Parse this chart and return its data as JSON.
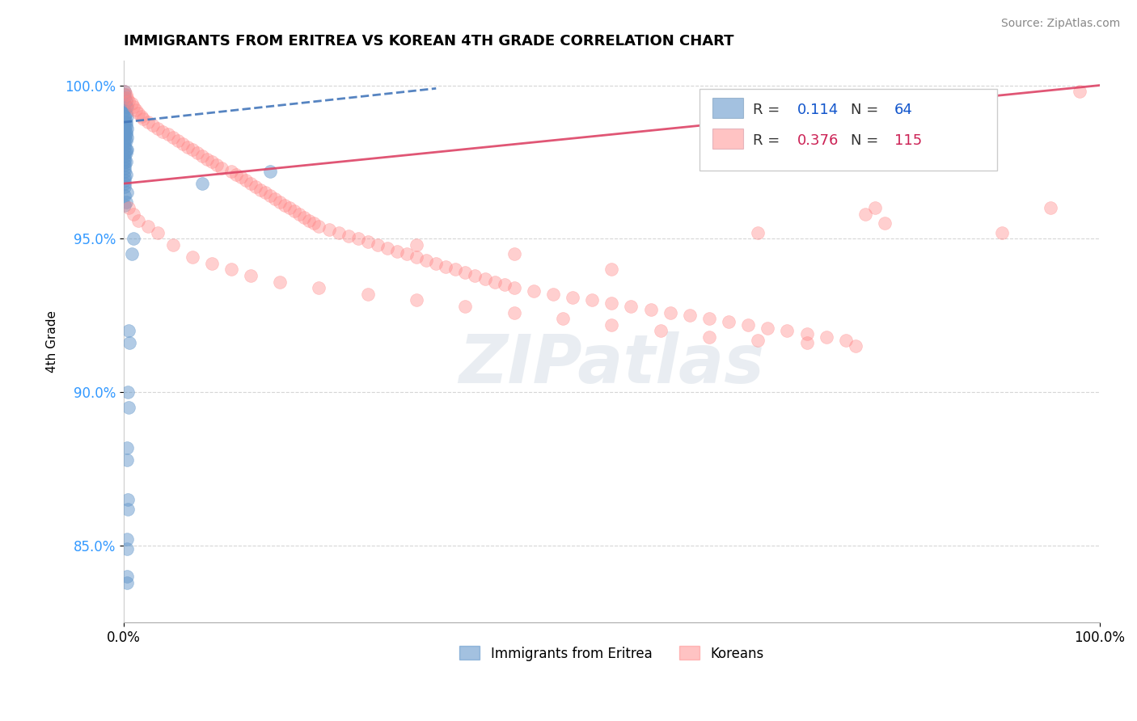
{
  "title": "IMMIGRANTS FROM ERITREA VS KOREAN 4TH GRADE CORRELATION CHART",
  "source_text": "Source: ZipAtlas.com",
  "ylabel": "4th Grade",
  "xlim": [
    0.0,
    1.0
  ],
  "ylim": [
    0.825,
    1.008
  ],
  "yticks": [
    0.85,
    0.9,
    0.95,
    1.0
  ],
  "ytick_labels": [
    "85.0%",
    "90.0%",
    "95.0%",
    "100.0%"
  ],
  "xticks": [
    0.0,
    1.0
  ],
  "xtick_labels": [
    "0.0%",
    "100.0%"
  ],
  "blue_color": "#6699CC",
  "pink_color": "#FF8888",
  "blue_R": 0.114,
  "blue_N": 64,
  "pink_R": 0.376,
  "pink_N": 115,
  "legend_label_blue": "Immigrants from Eritrea",
  "legend_label_pink": "Koreans",
  "watermark": "ZIPatlas",
  "blue_scatter_x": [
    0.001,
    0.001,
    0.001,
    0.002,
    0.001,
    0.003,
    0.002,
    0.001,
    0.002,
    0.001,
    0.003,
    0.001,
    0.001,
    0.002,
    0.001,
    0.002,
    0.001,
    0.003,
    0.001,
    0.002,
    0.001,
    0.002,
    0.001,
    0.003,
    0.001,
    0.002,
    0.001,
    0.001,
    0.002,
    0.003,
    0.001,
    0.002,
    0.001,
    0.001,
    0.002,
    0.001,
    0.001,
    0.001,
    0.001,
    0.002,
    0.001,
    0.001,
    0.001,
    0.001,
    0.003,
    0.001,
    0.002,
    0.001,
    0.15,
    0.08,
    0.01,
    0.008,
    0.005,
    0.006,
    0.004,
    0.005,
    0.003,
    0.003,
    0.004,
    0.004,
    0.003,
    0.003,
    0.003,
    0.003
  ],
  "blue_scatter_y": [
    0.998,
    0.997,
    0.996,
    0.995,
    0.994,
    0.993,
    0.993,
    0.992,
    0.991,
    0.99,
    0.99,
    0.989,
    0.988,
    0.988,
    0.987,
    0.987,
    0.986,
    0.986,
    0.985,
    0.985,
    0.984,
    0.984,
    0.983,
    0.983,
    0.982,
    0.982,
    0.981,
    0.98,
    0.979,
    0.979,
    0.978,
    0.978,
    0.977,
    0.976,
    0.975,
    0.975,
    0.974,
    0.973,
    0.972,
    0.971,
    0.97,
    0.969,
    0.968,
    0.967,
    0.965,
    0.964,
    0.962,
    0.961,
    0.972,
    0.968,
    0.95,
    0.945,
    0.92,
    0.916,
    0.9,
    0.895,
    0.882,
    0.878,
    0.865,
    0.862,
    0.852,
    0.849,
    0.84,
    0.838
  ],
  "pink_scatter_x": [
    0.001,
    0.002,
    0.003,
    0.005,
    0.008,
    0.01,
    0.012,
    0.015,
    0.018,
    0.02,
    0.025,
    0.03,
    0.035,
    0.04,
    0.045,
    0.05,
    0.055,
    0.06,
    0.065,
    0.07,
    0.075,
    0.08,
    0.085,
    0.09,
    0.095,
    0.1,
    0.11,
    0.115,
    0.12,
    0.125,
    0.13,
    0.135,
    0.14,
    0.145,
    0.15,
    0.155,
    0.16,
    0.165,
    0.17,
    0.175,
    0.18,
    0.185,
    0.19,
    0.195,
    0.2,
    0.21,
    0.22,
    0.23,
    0.24,
    0.25,
    0.26,
    0.27,
    0.28,
    0.29,
    0.3,
    0.31,
    0.32,
    0.33,
    0.34,
    0.35,
    0.36,
    0.37,
    0.38,
    0.39,
    0.4,
    0.42,
    0.44,
    0.46,
    0.48,
    0.5,
    0.52,
    0.54,
    0.56,
    0.58,
    0.6,
    0.62,
    0.64,
    0.66,
    0.68,
    0.7,
    0.72,
    0.74,
    0.005,
    0.01,
    0.015,
    0.025,
    0.035,
    0.05,
    0.07,
    0.09,
    0.11,
    0.13,
    0.16,
    0.2,
    0.25,
    0.3,
    0.35,
    0.4,
    0.45,
    0.5,
    0.55,
    0.6,
    0.65,
    0.7,
    0.75,
    0.76,
    0.77,
    0.65,
    0.5,
    0.4,
    0.3,
    0.9,
    0.95,
    0.98,
    0.78
  ],
  "pink_scatter_y": [
    0.998,
    0.997,
    0.996,
    0.995,
    0.994,
    0.993,
    0.992,
    0.991,
    0.99,
    0.989,
    0.988,
    0.987,
    0.986,
    0.985,
    0.984,
    0.983,
    0.982,
    0.981,
    0.98,
    0.979,
    0.978,
    0.977,
    0.976,
    0.975,
    0.974,
    0.973,
    0.972,
    0.971,
    0.97,
    0.969,
    0.968,
    0.967,
    0.966,
    0.965,
    0.964,
    0.963,
    0.962,
    0.961,
    0.96,
    0.959,
    0.958,
    0.957,
    0.956,
    0.955,
    0.954,
    0.953,
    0.952,
    0.951,
    0.95,
    0.949,
    0.948,
    0.947,
    0.946,
    0.945,
    0.944,
    0.943,
    0.942,
    0.941,
    0.94,
    0.939,
    0.938,
    0.937,
    0.936,
    0.935,
    0.934,
    0.933,
    0.932,
    0.931,
    0.93,
    0.929,
    0.928,
    0.927,
    0.926,
    0.925,
    0.924,
    0.923,
    0.922,
    0.921,
    0.92,
    0.919,
    0.918,
    0.917,
    0.96,
    0.958,
    0.956,
    0.954,
    0.952,
    0.948,
    0.944,
    0.942,
    0.94,
    0.938,
    0.936,
    0.934,
    0.932,
    0.93,
    0.928,
    0.926,
    0.924,
    0.922,
    0.92,
    0.918,
    0.917,
    0.916,
    0.915,
    0.958,
    0.96,
    0.952,
    0.94,
    0.945,
    0.948,
    0.952,
    0.96,
    0.998,
    0.955
  ],
  "blue_line_x": [
    0.0,
    0.32
  ],
  "blue_line_y": [
    0.988,
    0.999
  ],
  "pink_line_x": [
    0.0,
    1.0
  ],
  "pink_line_y": [
    0.968,
    1.0
  ]
}
